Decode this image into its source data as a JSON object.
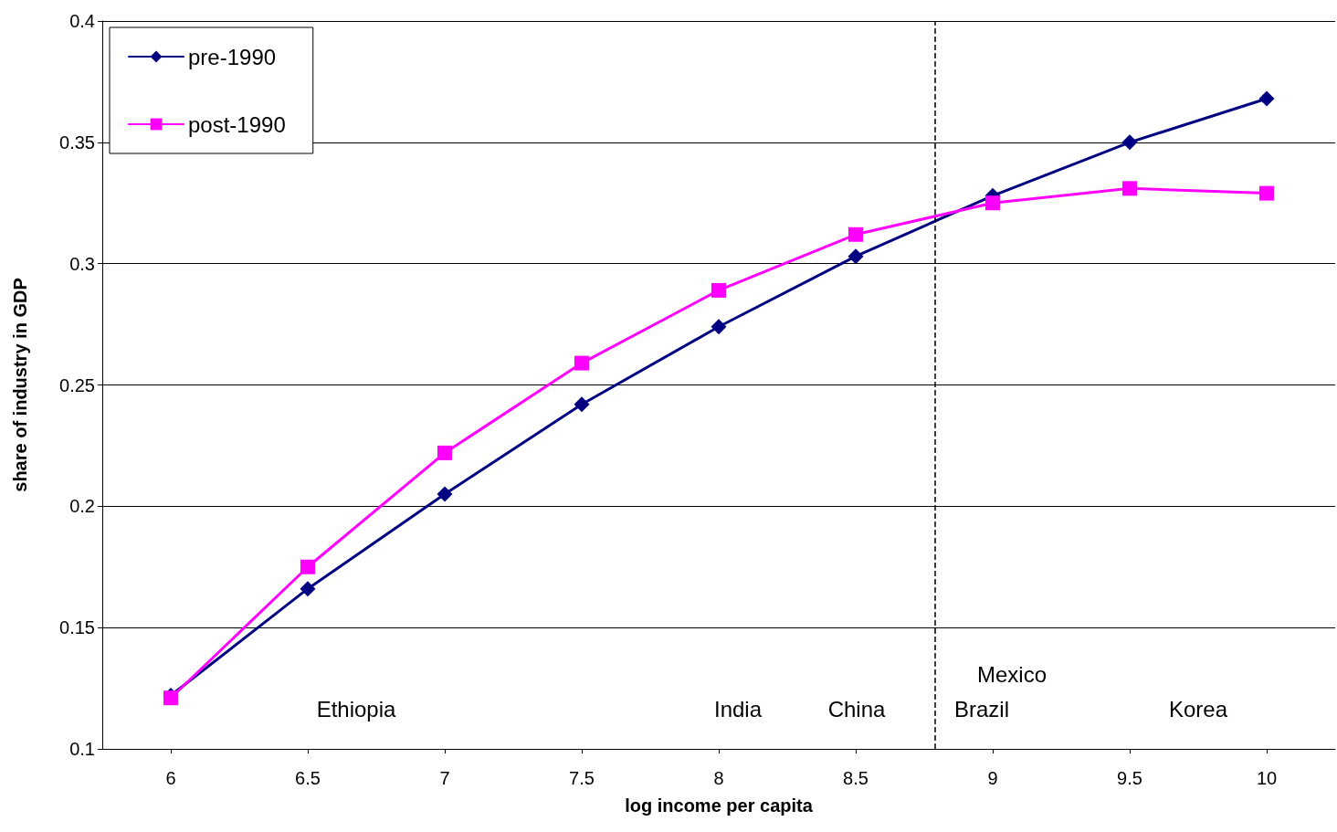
{
  "chart_data": {
    "type": "line",
    "xlabel": "log income per capita",
    "ylabel": "share of industry in GDP",
    "x": [
      6,
      6.5,
      7,
      7.5,
      8,
      8.5,
      9,
      9.5,
      10
    ],
    "series": [
      {
        "name": "pre-1990",
        "color": "#000080",
        "marker": "diamond",
        "values": [
          0.122,
          0.166,
          0.205,
          0.242,
          0.274,
          0.303,
          0.328,
          0.35,
          0.368
        ]
      },
      {
        "name": "post-1990",
        "color": "#ff00ff",
        "marker": "square",
        "values": [
          0.121,
          0.175,
          0.222,
          0.259,
          0.289,
          0.312,
          0.325,
          0.331,
          0.329
        ]
      }
    ],
    "xlim": [
      5.75,
      10.25
    ],
    "xticks": [
      6,
      6.5,
      7,
      7.5,
      8,
      8.5,
      9,
      9.5,
      10
    ],
    "ylim": [
      0.1,
      0.4
    ],
    "yticks": [
      0.1,
      0.15,
      0.2,
      0.25,
      0.3,
      0.35,
      0.4
    ],
    "grid": "y",
    "legend": "top left",
    "line_style": "solid",
    "ref_lines": [
      {
        "axis": "x",
        "value": 8.79,
        "color": "#000000",
        "line_style": "dashed"
      }
    ],
    "annotations": [
      "Ethiopia",
      "India",
      "China",
      "Brazil",
      "Mexico",
      "Korea"
    ]
  }
}
